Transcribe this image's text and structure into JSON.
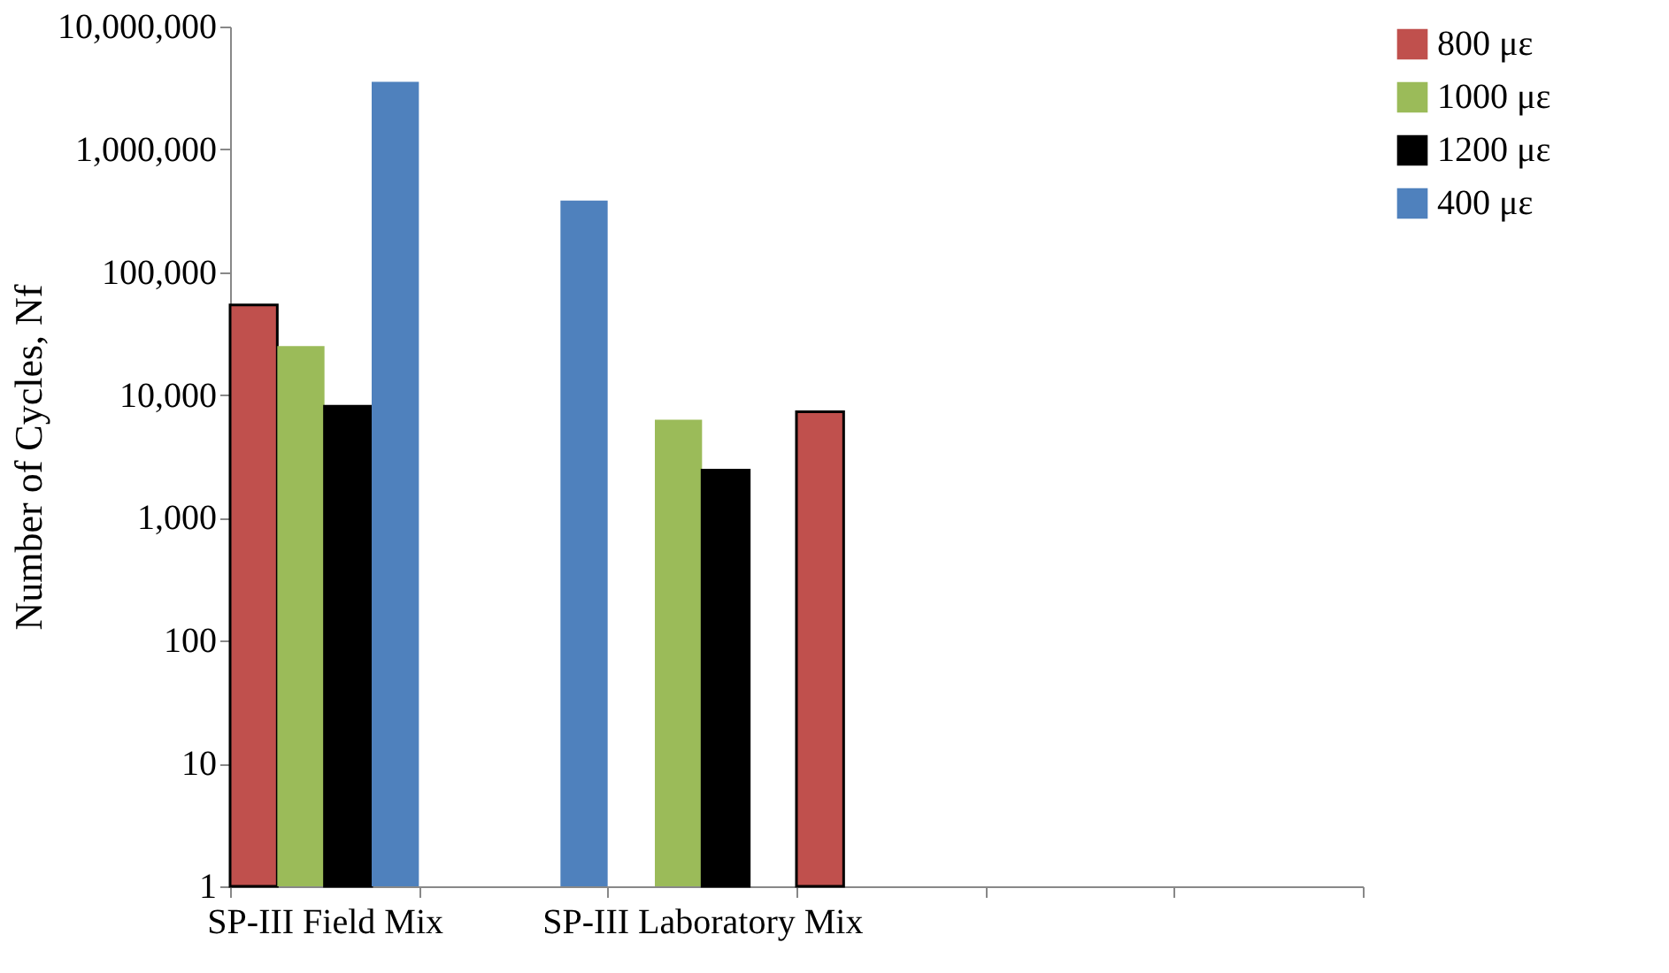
{
  "chart_data": {
    "type": "bar",
    "ylabel": "Number of Cycles, Nf",
    "log": true,
    "categories": [
      "SP-III Field Mix",
      null,
      "SP-III Laboratory Mix",
      null,
      null,
      null
    ],
    "series": [
      {
        "name": "800 με",
        "color": "#c0504d",
        "values": [
          54000,
          null,
          null,
          7300,
          null,
          null
        ]
      },
      {
        "name": "1000 με",
        "color": "#9bbb59",
        "values": [
          25000,
          null,
          6300,
          null,
          null,
          null
        ]
      },
      {
        "name": "1200 με",
        "color": "#000000",
        "values": [
          8100,
          null,
          2450,
          null,
          null,
          null
        ]
      },
      {
        "name": "400 με",
        "color": "#4f81bd",
        "values": [
          3540000,
          383000,
          null,
          null,
          null,
          null
        ]
      }
    ],
    "ylim": [
      1,
      10000000
    ],
    "yticks": [
      1,
      10,
      100,
      {
        "value": 1000,
        "label": "1,000"
      },
      {
        "value": 10000,
        "label": "10,000"
      },
      {
        "value": 100000,
        "label": "100,000"
      },
      {
        "value": 1000000,
        "label": "1,000,000"
      },
      {
        "value": 10000000,
        "label": "10,000,000"
      }
    ],
    "grid": false,
    "legend": "right"
  }
}
